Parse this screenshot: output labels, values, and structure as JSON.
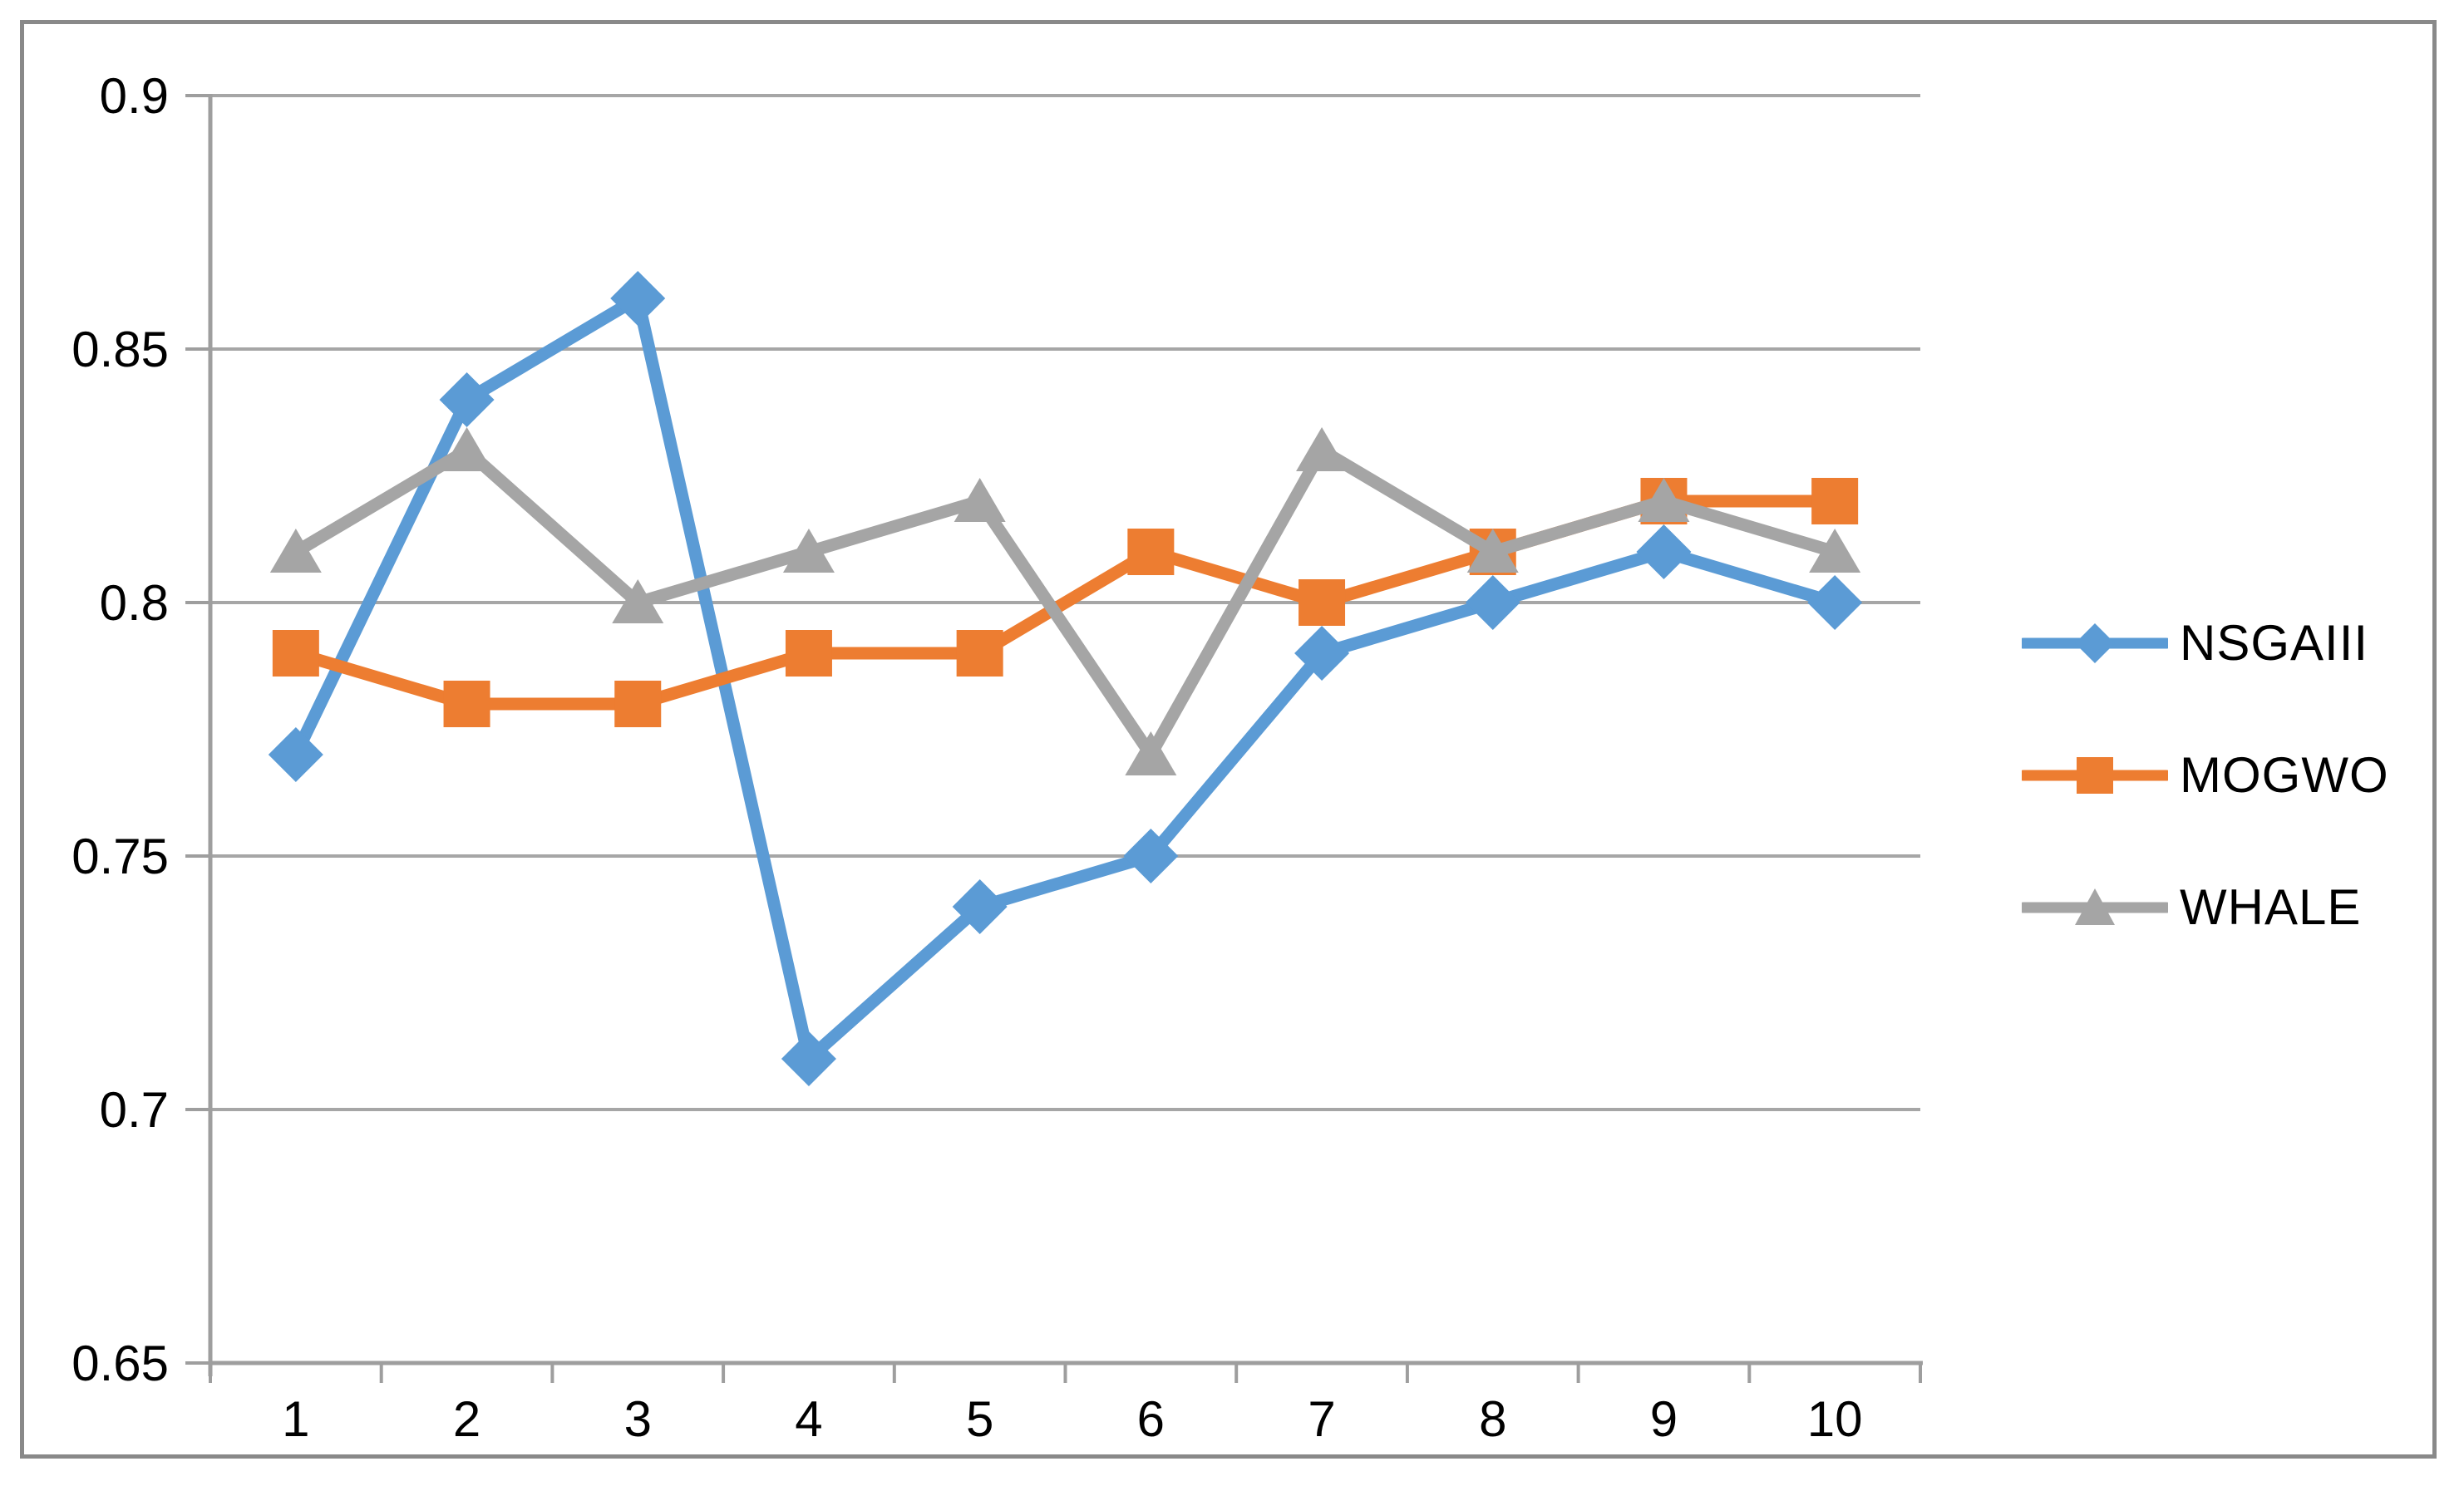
{
  "figure": {
    "background_color": "#FFFFFF",
    "border_color": "#898989"
  },
  "chart_data": {
    "type": "line",
    "title": "",
    "xlabel": "",
    "ylabel": "",
    "categories": [
      "1",
      "2",
      "3",
      "4",
      "5",
      "6",
      "7",
      "8",
      "9",
      "10"
    ],
    "series": [
      {
        "name": "NSGAIII",
        "color": "#5B9BD5",
        "marker": "diamond",
        "values": [
          0.77,
          0.84,
          0.86,
          0.71,
          0.74,
          0.75,
          0.79,
          0.8,
          0.81,
          0.8
        ]
      },
      {
        "name": "MOGWO",
        "color": "#ED7D31",
        "marker": "square",
        "values": [
          0.79,
          0.78,
          0.78,
          0.79,
          0.79,
          0.81,
          0.8,
          0.81,
          0.82,
          0.82
        ]
      },
      {
        "name": "WHALE",
        "color": "#A5A5A5",
        "marker": "triangle",
        "values": [
          0.81,
          0.83,
          0.8,
          0.81,
          0.82,
          0.77,
          0.83,
          0.81,
          0.82,
          0.81
        ]
      }
    ],
    "ylim": [
      0.65,
      0.9
    ],
    "y_ticks": [
      0.9,
      0.85,
      0.8,
      0.75,
      0.7,
      0.65
    ],
    "y_tick_labels": [
      "0.9",
      "0.85",
      "0.8",
      "0.75",
      "0.7",
      "0.65"
    ],
    "grid": true,
    "gridline_color": "#A6A6A6",
    "axis_color": "#9E9E9E",
    "tick_label_color": "#000000",
    "legend_position": "right"
  }
}
